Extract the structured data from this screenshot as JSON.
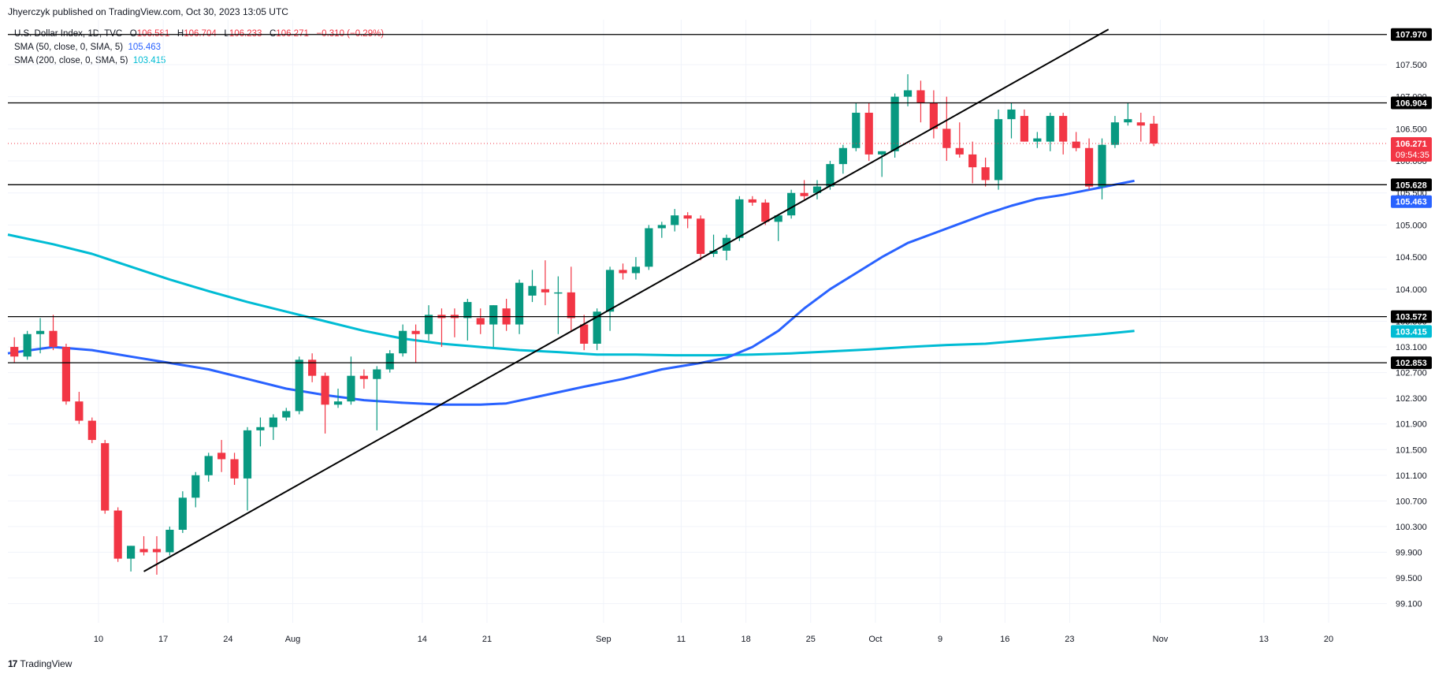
{
  "header": {
    "published_by": "Jhyerczyk published on TradingView.com, Oct 30, 2023 13:05 UTC"
  },
  "legend": {
    "symbol": "U.S. Dollar Index, 1D, TVC",
    "open_label": "O",
    "open": "106.581",
    "high_label": "H",
    "high": "106.704",
    "low_label": "L",
    "low": "106.233",
    "close_label": "C",
    "close": "106.271",
    "change": "−0.310 (−0.29%)",
    "sma50_label": "SMA (50, close, 0, SMA, 5)",
    "sma50_value": "105.463",
    "sma200_label": "SMA (200, close, 0, SMA, 5)",
    "sma200_value": "103.415"
  },
  "footer": {
    "brand": "TradingView",
    "logo": "17"
  },
  "colors": {
    "up": "#089981",
    "down": "#f23645",
    "sma50": "#2962ff",
    "sma200": "#00bcd4",
    "grid": "#f0f3fa",
    "line": "#000000"
  },
  "chart_data": {
    "type": "candlestick",
    "y_axis_ticks": [
      "99.100",
      "99.500",
      "99.900",
      "100.300",
      "100.700",
      "101.100",
      "101.500",
      "101.900",
      "102.300",
      "102.700",
      "103.100",
      "103.500",
      "104.000",
      "104.500",
      "105.000",
      "105.500",
      "106.000",
      "106.500",
      "107.000",
      "107.500"
    ],
    "x_axis_ticks": [
      {
        "label": "10",
        "bar": 6.5
      },
      {
        "label": "17",
        "bar": 11.5
      },
      {
        "label": "24",
        "bar": 16.5
      },
      {
        "label": "Aug",
        "bar": 21.5
      },
      {
        "label": "14",
        "bar": 31.5
      },
      {
        "label": "21",
        "bar": 36.5
      },
      {
        "label": "Sep",
        "bar": 45.5
      },
      {
        "label": "11",
        "bar": 51.5
      },
      {
        "label": "18",
        "bar": 56.5
      },
      {
        "label": "25",
        "bar": 61.5
      },
      {
        "label": "Oct",
        "bar": 66.5
      },
      {
        "label": "9",
        "bar": 71.5
      },
      {
        "label": "16",
        "bar": 76.5
      },
      {
        "label": "23",
        "bar": 81.5
      },
      {
        "label": "Nov",
        "bar": 88.5
      },
      {
        "label": "13",
        "bar": 96.5
      },
      {
        "label": "20",
        "bar": 101.5
      }
    ],
    "y_range": [
      98.8,
      108.2
    ],
    "bar_range": [
      -0.5,
      106
    ],
    "candles": [
      [
        103.1,
        103.25,
        102.85,
        102.95
      ],
      [
        102.95,
        103.35,
        102.9,
        103.3
      ],
      [
        103.3,
        103.55,
        103.0,
        103.35
      ],
      [
        103.35,
        103.6,
        103.05,
        103.1
      ],
      [
        103.1,
        103.15,
        102.2,
        102.25
      ],
      [
        102.25,
        102.4,
        101.9,
        101.95
      ],
      [
        101.95,
        102.0,
        101.6,
        101.65
      ],
      [
        101.6,
        101.65,
        100.5,
        100.55
      ],
      [
        100.55,
        100.6,
        99.75,
        99.8
      ],
      [
        99.8,
        100.0,
        99.6,
        100.0
      ],
      [
        99.95,
        100.15,
        99.85,
        99.9
      ],
      [
        99.95,
        100.15,
        99.55,
        99.9
      ],
      [
        99.9,
        100.3,
        99.85,
        100.25
      ],
      [
        100.25,
        100.85,
        100.2,
        100.75
      ],
      [
        100.75,
        101.15,
        100.6,
        101.1
      ],
      [
        101.1,
        101.45,
        101.0,
        101.4
      ],
      [
        101.45,
        101.65,
        101.15,
        101.35
      ],
      [
        101.35,
        101.45,
        100.95,
        101.05
      ],
      [
        101.05,
        101.85,
        100.55,
        101.8
      ],
      [
        101.8,
        102.0,
        101.55,
        101.85
      ],
      [
        101.85,
        102.05,
        101.65,
        102.0
      ],
      [
        102.0,
        102.15,
        101.95,
        102.1
      ],
      [
        102.1,
        102.95,
        102.05,
        102.9
      ],
      [
        102.9,
        103.0,
        102.55,
        102.65
      ],
      [
        102.65,
        102.7,
        101.75,
        102.2
      ],
      [
        102.2,
        102.45,
        102.15,
        102.25
      ],
      [
        102.25,
        102.95,
        102.2,
        102.65
      ],
      [
        102.65,
        102.75,
        102.45,
        102.6
      ],
      [
        102.6,
        102.8,
        101.8,
        102.75
      ],
      [
        102.75,
        103.05,
        102.7,
        103.0
      ],
      [
        103.0,
        103.45,
        102.95,
        103.35
      ],
      [
        103.35,
        103.45,
        102.85,
        103.3
      ],
      [
        103.3,
        103.75,
        103.2,
        103.6
      ],
      [
        103.6,
        103.7,
        103.1,
        103.55
      ],
      [
        103.6,
        103.7,
        103.25,
        103.55
      ],
      [
        103.55,
        103.85,
        103.2,
        103.8
      ],
      [
        103.55,
        103.7,
        103.3,
        103.45
      ],
      [
        103.45,
        103.75,
        103.1,
        103.75
      ],
      [
        103.7,
        103.85,
        103.35,
        103.45
      ],
      [
        103.45,
        104.15,
        103.3,
        104.1
      ],
      [
        103.9,
        104.3,
        103.8,
        104.05
      ],
      [
        104.0,
        104.45,
        103.75,
        103.95
      ],
      [
        103.95,
        104.2,
        103.3,
        103.95
      ],
      [
        103.95,
        104.35,
        103.35,
        103.55
      ],
      [
        103.45,
        103.6,
        103.05,
        103.15
      ],
      [
        103.15,
        103.7,
        103.05,
        103.65
      ],
      [
        103.65,
        104.35,
        103.35,
        104.3
      ],
      [
        104.3,
        104.4,
        104.15,
        104.25
      ],
      [
        104.25,
        104.5,
        104.15,
        104.35
      ],
      [
        104.35,
        105.0,
        104.3,
        104.95
      ],
      [
        104.95,
        105.05,
        104.8,
        105.0
      ],
      [
        105.0,
        105.25,
        104.9,
        105.15
      ],
      [
        105.15,
        105.2,
        104.95,
        105.1
      ],
      [
        105.1,
        105.15,
        104.45,
        104.55
      ],
      [
        104.55,
        104.85,
        104.5,
        104.6
      ],
      [
        104.6,
        104.85,
        104.45,
        104.8
      ],
      [
        104.8,
        105.45,
        104.75,
        105.4
      ],
      [
        105.4,
        105.45,
        105.3,
        105.35
      ],
      [
        105.35,
        105.4,
        105.0,
        105.05
      ],
      [
        105.05,
        105.15,
        104.75,
        105.15
      ],
      [
        105.15,
        105.55,
        105.1,
        105.5
      ],
      [
        105.5,
        105.7,
        105.4,
        105.45
      ],
      [
        105.5,
        105.7,
        105.4,
        105.6
      ],
      [
        105.6,
        106.0,
        105.55,
        105.95
      ],
      [
        105.95,
        106.25,
        105.8,
        106.2
      ],
      [
        106.2,
        106.9,
        106.15,
        106.75
      ],
      [
        106.75,
        106.9,
        106.0,
        106.1
      ],
      [
        106.1,
        106.15,
        105.75,
        106.15
      ],
      [
        106.15,
        107.05,
        106.05,
        107.0
      ],
      [
        107.0,
        107.35,
        106.85,
        107.1
      ],
      [
        107.1,
        107.25,
        106.6,
        106.9
      ],
      [
        106.9,
        107.1,
        106.35,
        106.5
      ],
      [
        106.5,
        107.0,
        106.0,
        106.2
      ],
      [
        106.2,
        106.6,
        106.05,
        106.1
      ],
      [
        106.1,
        106.3,
        105.65,
        105.9
      ],
      [
        105.9,
        106.05,
        105.6,
        105.7
      ],
      [
        105.7,
        106.8,
        105.55,
        106.65
      ],
      [
        106.65,
        106.9,
        106.35,
        106.8
      ],
      [
        106.7,
        106.8,
        106.3,
        106.3
      ],
      [
        106.3,
        106.45,
        106.2,
        106.35
      ],
      [
        106.3,
        106.75,
        106.15,
        106.7
      ],
      [
        106.7,
        106.75,
        106.1,
        106.3
      ],
      [
        106.3,
        106.45,
        106.15,
        106.2
      ],
      [
        106.2,
        106.35,
        105.55,
        105.6
      ],
      [
        105.6,
        106.35,
        105.4,
        106.25
      ],
      [
        106.25,
        106.7,
        106.2,
        106.6
      ],
      [
        106.6,
        106.9,
        106.55,
        106.65
      ],
      [
        106.6,
        106.75,
        106.3,
        106.55
      ],
      [
        106.58,
        106.7,
        106.23,
        106.27
      ]
    ],
    "sma50": [
      [
        -0.5,
        103.0
      ],
      [
        3,
        103.1
      ],
      [
        6,
        103.05
      ],
      [
        9,
        102.95
      ],
      [
        12,
        102.85
      ],
      [
        15,
        102.75
      ],
      [
        18,
        102.6
      ],
      [
        21,
        102.45
      ],
      [
        24,
        102.35
      ],
      [
        27,
        102.27
      ],
      [
        30,
        102.23
      ],
      [
        33,
        102.2
      ],
      [
        36,
        102.2
      ],
      [
        38,
        102.22
      ],
      [
        41,
        102.35
      ],
      [
        44,
        102.48
      ],
      [
        47,
        102.6
      ],
      [
        50,
        102.75
      ],
      [
        53,
        102.85
      ],
      [
        55,
        102.93
      ],
      [
        57,
        103.1
      ],
      [
        59,
        103.35
      ],
      [
        61,
        103.7
      ],
      [
        63,
        104.0
      ],
      [
        65,
        104.25
      ],
      [
        67,
        104.5
      ],
      [
        69,
        104.72
      ],
      [
        71,
        104.87
      ],
      [
        73,
        105.02
      ],
      [
        75,
        105.17
      ],
      [
        77,
        105.3
      ],
      [
        79,
        105.41
      ],
      [
        81,
        105.47
      ],
      [
        83,
        105.55
      ],
      [
        85,
        105.63
      ],
      [
        86.5,
        105.69
      ]
    ],
    "sma200": [
      [
        -0.5,
        104.85
      ],
      [
        3,
        104.7
      ],
      [
        6,
        104.55
      ],
      [
        9,
        104.35
      ],
      [
        12,
        104.15
      ],
      [
        15,
        103.97
      ],
      [
        18,
        103.8
      ],
      [
        21,
        103.65
      ],
      [
        24,
        103.5
      ],
      [
        27,
        103.35
      ],
      [
        30,
        103.23
      ],
      [
        33,
        103.15
      ],
      [
        36,
        103.1
      ],
      [
        39,
        103.05
      ],
      [
        42,
        103.02
      ],
      [
        45,
        102.98
      ],
      [
        48,
        102.98
      ],
      [
        51,
        102.97
      ],
      [
        54,
        102.97
      ],
      [
        57,
        102.98
      ],
      [
        60,
        103.0
      ],
      [
        63,
        103.03
      ],
      [
        66,
        103.06
      ],
      [
        69,
        103.1
      ],
      [
        72,
        103.13
      ],
      [
        75,
        103.15
      ],
      [
        78,
        103.2
      ],
      [
        81,
        103.25
      ],
      [
        84,
        103.3
      ],
      [
        86.5,
        103.35
      ]
    ],
    "trendline": [
      [
        10,
        99.6
      ],
      [
        84.5,
        108.05
      ]
    ],
    "horizontal_levels": [
      "107.970",
      "106.904",
      "105.628",
      "103.572",
      "102.853"
    ],
    "current_price": "106.271",
    "countdown": "09:54:35",
    "sma50_tag": "105.463",
    "sma200_tag": "103.415"
  }
}
